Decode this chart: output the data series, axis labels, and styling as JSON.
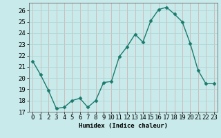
{
  "x": [
    0,
    1,
    2,
    3,
    4,
    5,
    6,
    7,
    8,
    9,
    10,
    11,
    12,
    13,
    14,
    15,
    16,
    17,
    18,
    19,
    20,
    21,
    22,
    23
  ],
  "y": [
    21.5,
    20.3,
    18.9,
    17.3,
    17.4,
    18.0,
    18.2,
    17.4,
    18.0,
    19.6,
    19.7,
    21.9,
    22.8,
    23.9,
    23.2,
    25.1,
    26.1,
    26.3,
    25.7,
    25.0,
    23.1,
    20.7,
    19.5,
    19.5
  ],
  "line_color": "#1a7a6e",
  "marker": "D",
  "marker_size": 2.5,
  "bg_color": "#c8eaea",
  "grid_color": "#aed4d4",
  "grid_color2": "#d4aaaa",
  "xlabel": "Humidex (Indice chaleur)",
  "ylabel": "",
  "xlim": [
    -0.5,
    23.5
  ],
  "ylim": [
    17,
    26.7
  ],
  "yticks": [
    17,
    18,
    19,
    20,
    21,
    22,
    23,
    24,
    25,
    26
  ],
  "xticks": [
    0,
    1,
    2,
    3,
    4,
    5,
    6,
    7,
    8,
    9,
    10,
    11,
    12,
    13,
    14,
    15,
    16,
    17,
    18,
    19,
    20,
    21,
    22,
    23
  ],
  "font_size": 6.5,
  "line_width": 1.0
}
